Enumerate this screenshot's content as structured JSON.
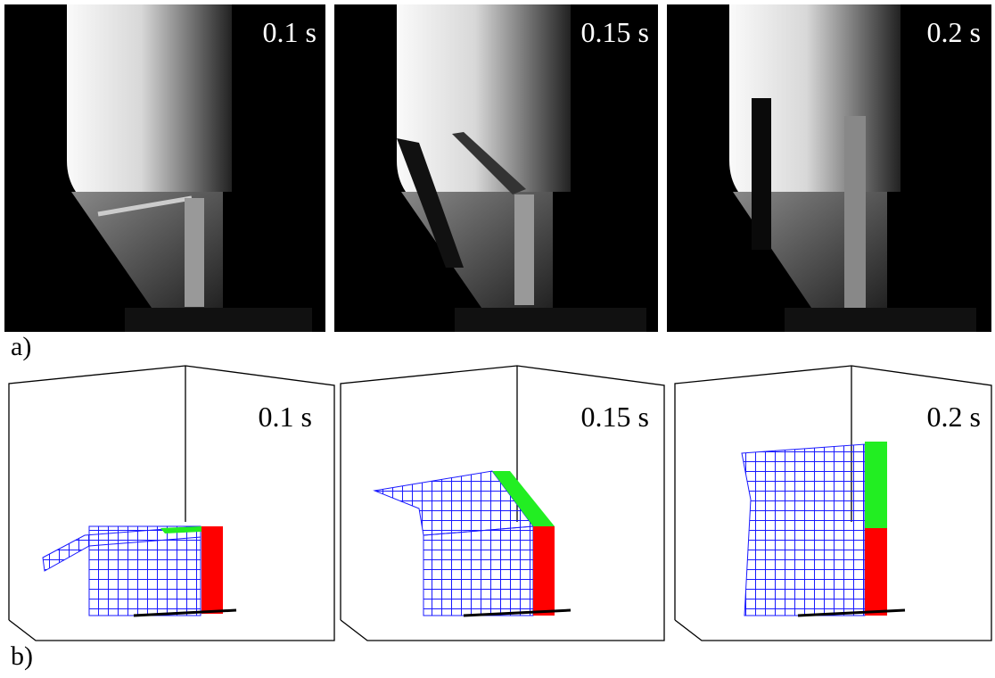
{
  "photos": [
    {
      "label": "0.1 s"
    },
    {
      "label": "0.15 s"
    },
    {
      "label": "0.2 s"
    }
  ],
  "photos_caption": "a)",
  "simulations": [
    {
      "label": "0.1 s"
    },
    {
      "label": "0.15 s"
    },
    {
      "label": "0.2 s"
    }
  ],
  "simulations_caption": "b)"
}
